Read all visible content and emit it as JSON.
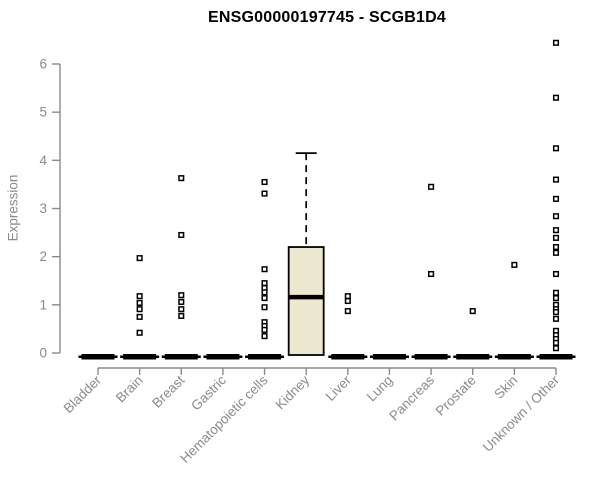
{
  "title": "ENSG00000197745 - SCGB1D4",
  "colors": {
    "background": "#ffffff",
    "axis": "#8a8a8a",
    "tick_label": "#8a8a8a",
    "title_color": "#000000",
    "box_fill": "#ede8d0",
    "box_stroke": "#000000",
    "marker_stroke": "#000000",
    "marker_fill": "#ffffff"
  },
  "chart_data": {
    "type": "boxplot",
    "title": "ENSG00000197745 - SCGB1D4",
    "xlabel": "",
    "ylabel": "Expression",
    "ylim": [
      0,
      6.6
    ],
    "yticks": [
      0,
      1,
      2,
      3,
      4,
      5,
      6
    ],
    "grid": false,
    "legend": "none",
    "categories": [
      "Bladder",
      "Brain",
      "Breast",
      "Gastric",
      "Hematopoietic cells",
      "Kidney",
      "Liver",
      "Lung",
      "Pancreas",
      "Prostate",
      "Skin",
      "Unknown / Other"
    ],
    "series": [
      {
        "name": "Bladder",
        "box": {
          "whisker_low": 0,
          "q1": 0,
          "median": 0,
          "q3": 0,
          "whisker_high": 0
        },
        "outliers": []
      },
      {
        "name": "Brain",
        "box": {
          "whisker_low": 0,
          "q1": 0,
          "median": 0,
          "q3": 0,
          "whisker_high": 0
        },
        "outliers": [
          1.97,
          1.18,
          1.04,
          0.91,
          0.75,
          0.42
        ]
      },
      {
        "name": "Breast",
        "box": {
          "whisker_low": 0,
          "q1": 0,
          "median": 0,
          "q3": 0,
          "whisker_high": 0
        },
        "outliers": [
          3.63,
          2.45,
          1.2,
          1.06,
          0.91,
          0.77
        ]
      },
      {
        "name": "Gastric",
        "box": {
          "whisker_low": 0,
          "q1": 0,
          "median": 0,
          "q3": 0,
          "whisker_high": 0
        },
        "outliers": []
      },
      {
        "name": "Hematopoietic cells",
        "box": {
          "whisker_low": 0,
          "q1": 0,
          "median": 0,
          "q3": 0,
          "whisker_high": 0
        },
        "outliers": [
          3.55,
          3.31,
          1.74,
          1.45,
          1.35,
          1.26,
          1.14,
          0.95,
          0.64,
          0.56,
          0.48,
          0.35
        ]
      },
      {
        "name": "Kidney",
        "box": {
          "whisker_low": 0,
          "q1": 0,
          "median": 1.16,
          "q3": 2.2,
          "whisker_high": 4.15
        },
        "outliers": []
      },
      {
        "name": "Liver",
        "box": {
          "whisker_low": 0,
          "q1": 0,
          "median": 0,
          "q3": 0,
          "whisker_high": 0
        },
        "outliers": [
          1.18,
          1.08,
          0.87
        ]
      },
      {
        "name": "Lung",
        "box": {
          "whisker_low": 0,
          "q1": 0,
          "median": 0,
          "q3": 0,
          "whisker_high": 0
        },
        "outliers": []
      },
      {
        "name": "Pancreas",
        "box": {
          "whisker_low": 0,
          "q1": 0,
          "median": 0,
          "q3": 0,
          "whisker_high": 0
        },
        "outliers": [
          3.45,
          1.64
        ]
      },
      {
        "name": "Prostate",
        "box": {
          "whisker_low": 0,
          "q1": 0,
          "median": 0,
          "q3": 0,
          "whisker_high": 0
        },
        "outliers": [
          0.87
        ]
      },
      {
        "name": "Skin",
        "box": {
          "whisker_low": 0,
          "q1": 0,
          "median": 0,
          "q3": 0,
          "whisker_high": 0
        },
        "outliers": [
          1.83
        ]
      },
      {
        "name": "Unknown / Other",
        "box": {
          "whisker_low": 0,
          "q1": 0,
          "median": 0,
          "q3": 0,
          "whisker_high": 0
        },
        "outliers": [
          6.44,
          5.3,
          4.25,
          3.6,
          3.2,
          2.84,
          2.55,
          2.39,
          2.2,
          2.08,
          1.64,
          1.25,
          1.14,
          1.0,
          0.91,
          0.85,
          0.71,
          0.46,
          0.37,
          0.29,
          0.21,
          0.1
        ]
      }
    ]
  }
}
